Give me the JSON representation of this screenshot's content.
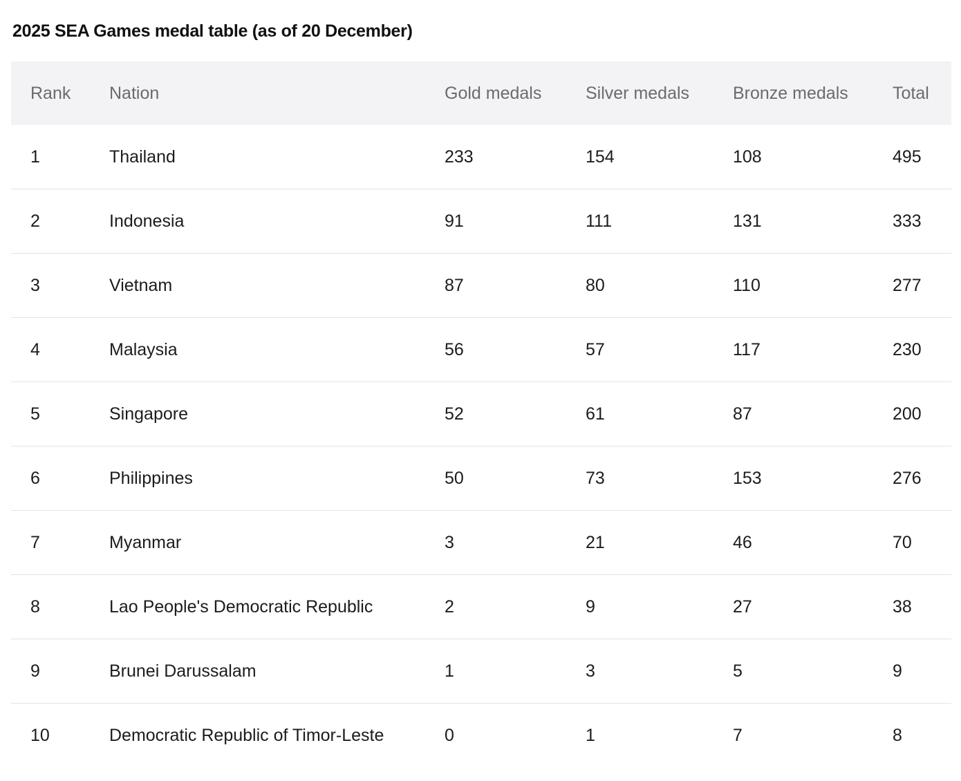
{
  "title": "2025 SEA Games medal table (as of 20 December)",
  "table": {
    "headers": {
      "rank": "Rank",
      "nation": "Nation",
      "gold": "Gold medals",
      "silver": "Silver medals",
      "bronze": "Bronze medals",
      "total": "Total"
    },
    "rows": [
      {
        "rank": "1",
        "nation": "Thailand",
        "gold": "233",
        "silver": "154",
        "bronze": "108",
        "total": "495"
      },
      {
        "rank": "2",
        "nation": "Indonesia",
        "gold": "91",
        "silver": "111",
        "bronze": "131",
        "total": "333"
      },
      {
        "rank": "3",
        "nation": "Vietnam",
        "gold": "87",
        "silver": "80",
        "bronze": "110",
        "total": "277"
      },
      {
        "rank": "4",
        "nation": "Malaysia",
        "gold": "56",
        "silver": "57",
        "bronze": "117",
        "total": "230"
      },
      {
        "rank": "5",
        "nation": "Singapore",
        "gold": "52",
        "silver": "61",
        "bronze": "87",
        "total": "200"
      },
      {
        "rank": "6",
        "nation": "Philippines",
        "gold": "50",
        "silver": "73",
        "bronze": "153",
        "total": "276"
      },
      {
        "rank": "7",
        "nation": "Myanmar",
        "gold": "3",
        "silver": "21",
        "bronze": "46",
        "total": "70"
      },
      {
        "rank": "8",
        "nation": "Lao People's Democratic Republic",
        "gold": "2",
        "silver": "9",
        "bronze": "27",
        "total": "38"
      },
      {
        "rank": "9",
        "nation": "Brunei Darussalam",
        "gold": "1",
        "silver": "3",
        "bronze": "5",
        "total": "9"
      },
      {
        "rank": "10",
        "nation": "Democratic Republic of Timor-Leste",
        "gold": "0",
        "silver": "1",
        "bronze": "7",
        "total": "8"
      }
    ]
  },
  "colors": {
    "header_background": "#f3f2f4",
    "header_text": "#6b6b6b",
    "body_text": "#1c1c1c",
    "row_divider": "#e3e3e3"
  }
}
